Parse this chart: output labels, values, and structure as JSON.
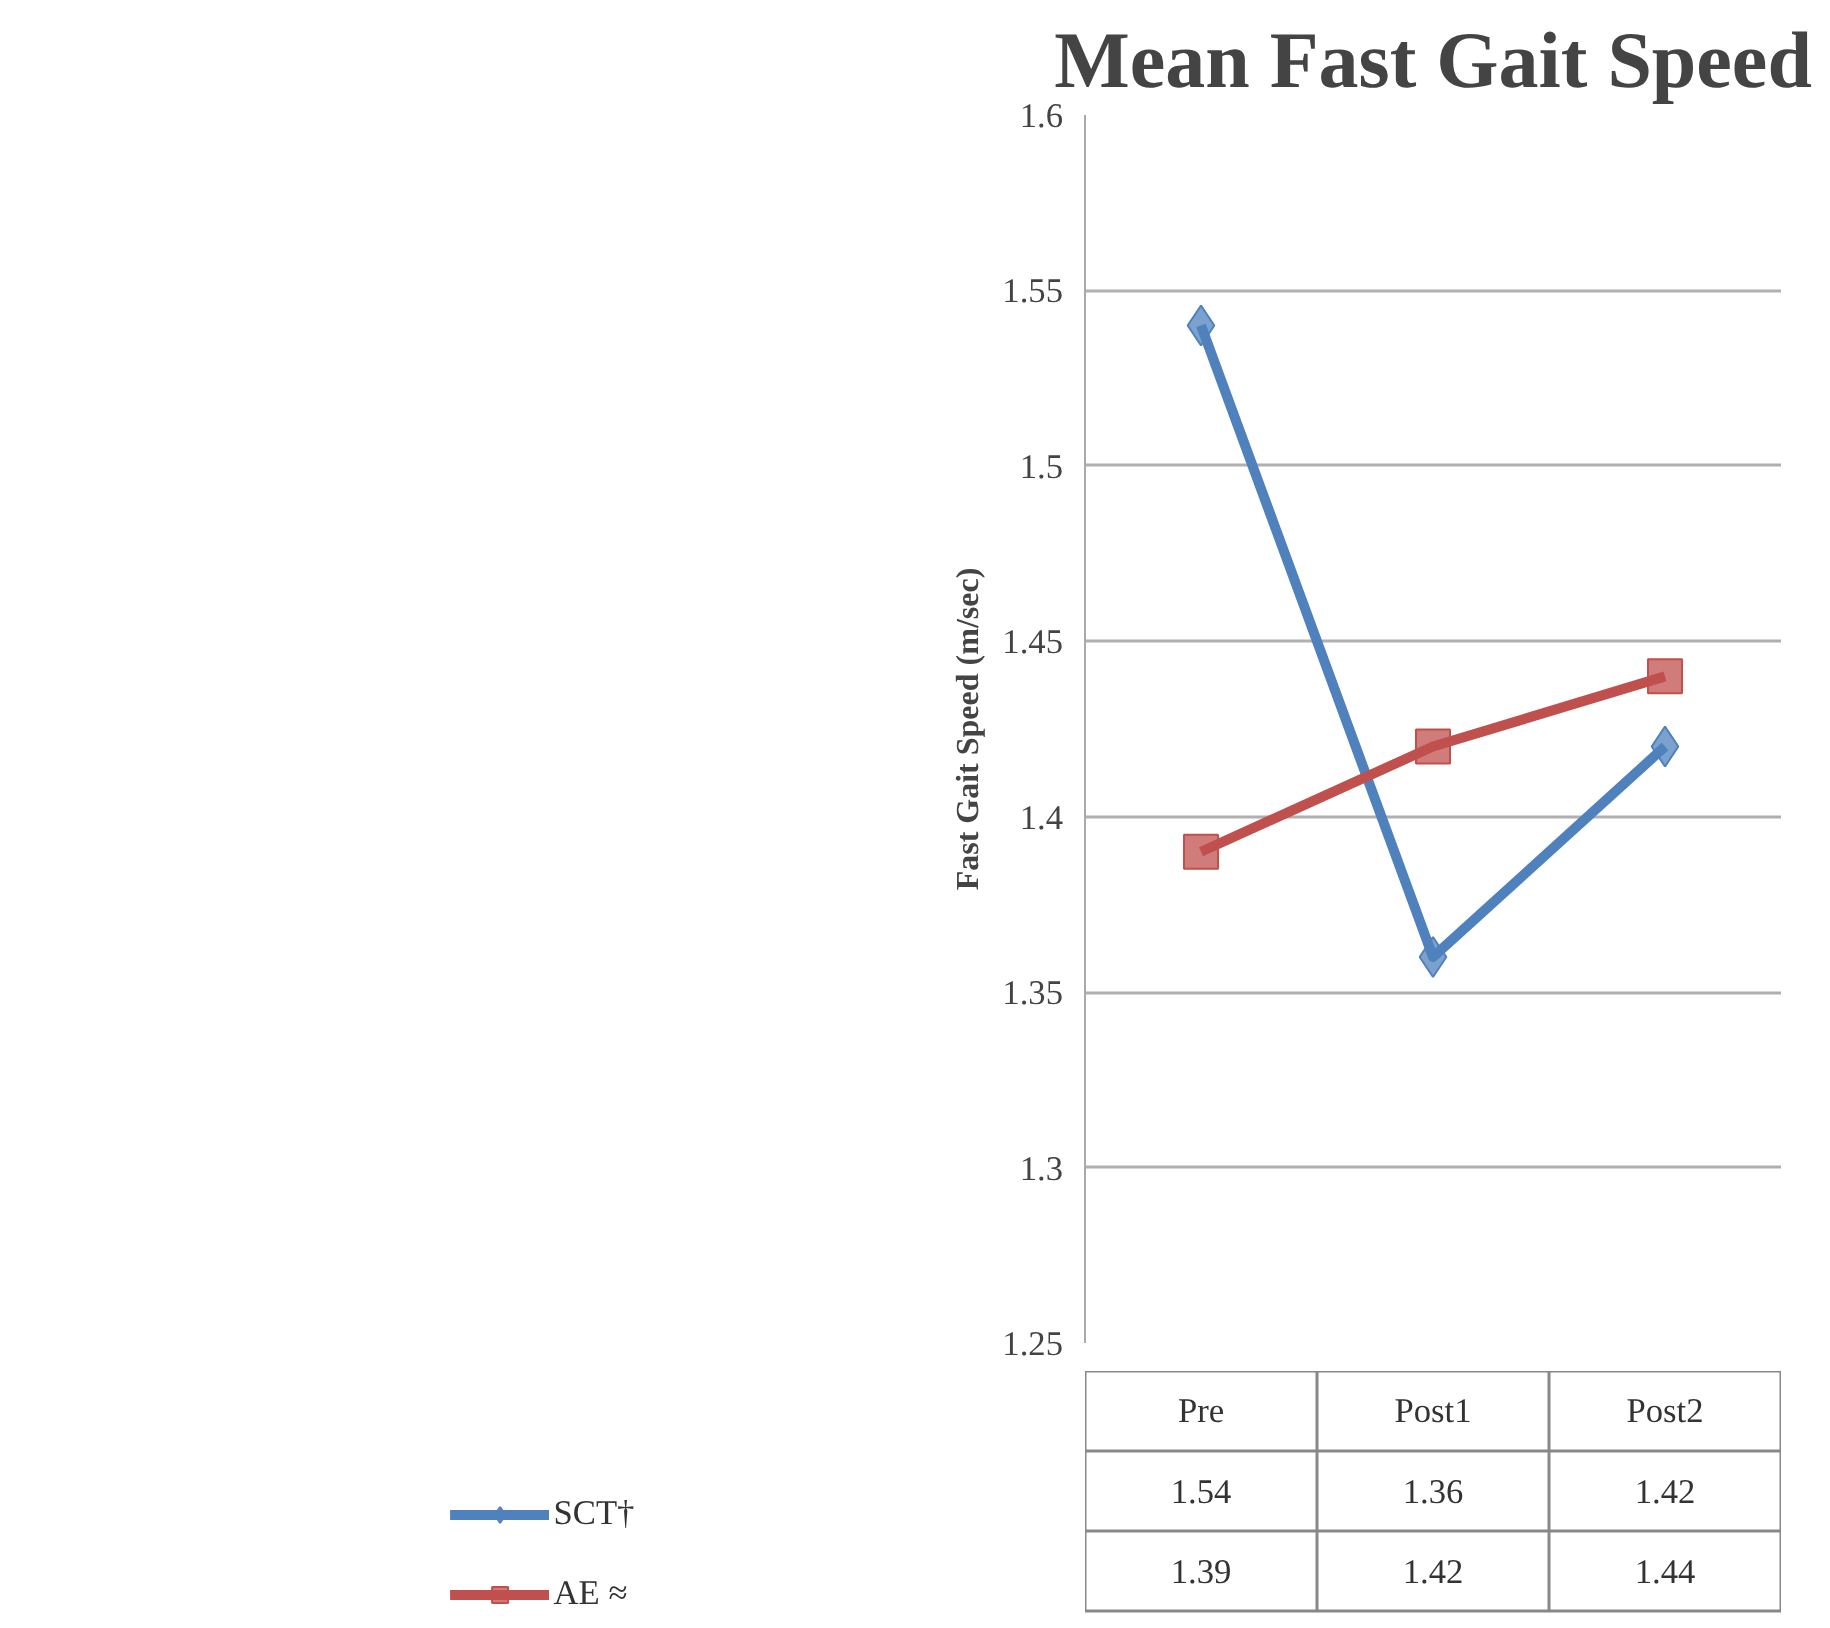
{
  "chart_data": {
    "type": "line",
    "title": "Mean Fast Gait Speed",
    "ylabel": "Fast Gait Speed (m/sec)",
    "categories": [
      "Pre",
      "Post1",
      "Post2"
    ],
    "series": [
      {
        "name": "SCT†",
        "color": "#4f81bd",
        "marker": "diamond",
        "values": [
          1.54,
          1.36,
          1.42
        ]
      },
      {
        "name": "AE ≈",
        "color": "#c0504d",
        "marker": "square",
        "values": [
          1.39,
          1.42,
          1.44
        ]
      }
    ],
    "ylim": [
      1.25,
      1.6
    ],
    "yticks": [
      1.25,
      1.3,
      1.35,
      1.4,
      1.45,
      1.5,
      1.55,
      1.6
    ],
    "grid": "y",
    "legend": "bottom",
    "data_labels": true,
    "line_style": "solid"
  }
}
